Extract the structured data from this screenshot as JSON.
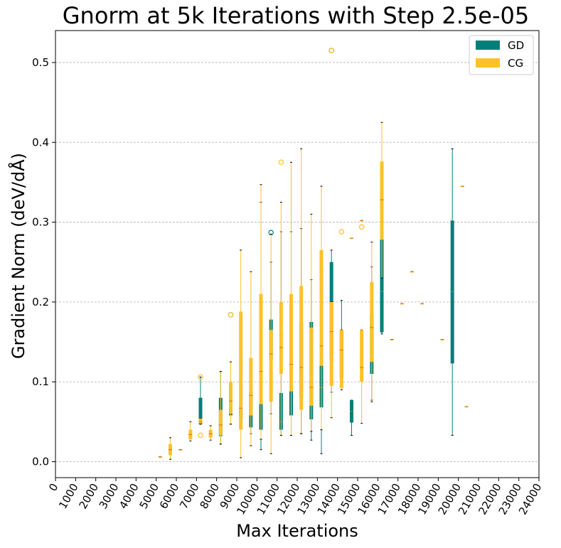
{
  "chart_data": {
    "type": "boxplot",
    "title": "Gnorm at 5k Iterations with Step 2.5e-05",
    "xlabel": "Max Iterations",
    "ylabel": "Gradient Norm (deV/dÅ)",
    "xlim": [
      0,
      24000
    ],
    "ylim": [
      -0.02,
      0.54
    ],
    "grid": "horizontal dashed",
    "legend_position": "top-right",
    "x_ticks": [
      {
        "value": 0,
        "label": "0"
      },
      {
        "value": 1000,
        "label": "1000"
      },
      {
        "value": 2000,
        "label": "2000"
      },
      {
        "value": 3000,
        "label": "3000"
      },
      {
        "value": 4000,
        "label": "4000"
      },
      {
        "value": 5000,
        "label": "5000"
      },
      {
        "value": 6000,
        "label": "6000"
      },
      {
        "value": 7000,
        "label": "7000"
      },
      {
        "value": 8000,
        "label": "8000"
      },
      {
        "value": 9000,
        "label": "9000"
      },
      {
        "value": 10000,
        "label": "10000"
      },
      {
        "value": 11000,
        "label": "11000"
      },
      {
        "value": 12000,
        "label": "12000"
      },
      {
        "value": 13000,
        "label": "13000"
      },
      {
        "value": 14000,
        "label": "14000"
      },
      {
        "value": 15000,
        "label": "15000"
      },
      {
        "value": 16000,
        "label": "16000"
      },
      {
        "value": 17000,
        "label": "17000"
      },
      {
        "value": 18000,
        "label": "18000"
      },
      {
        "value": 19000,
        "label": "19000"
      },
      {
        "value": 20000,
        "label": "20000"
      },
      {
        "value": 21000,
        "label": "21000"
      },
      {
        "value": 22000,
        "label": "22000"
      },
      {
        "value": 23000,
        "label": "23000"
      },
      {
        "value": 24000,
        "label": "24000"
      }
    ],
    "y_ticks": [
      {
        "value": 0.0,
        "label": "0.0"
      },
      {
        "value": 0.1,
        "label": "0.1"
      },
      {
        "value": 0.2,
        "label": "0.2"
      },
      {
        "value": 0.3,
        "label": "0.3"
      },
      {
        "value": 0.4,
        "label": "0.4"
      },
      {
        "value": 0.5,
        "label": "0.5"
      }
    ],
    "series": [
      {
        "name": "GD",
        "color": "#007f7a",
        "boxes": [
          {
            "x": 7200,
            "whislo": 0.047,
            "q1": 0.047,
            "med": 0.052,
            "q3": 0.08,
            "whishi": 0.106
          },
          {
            "x": 8200,
            "whislo": 0.022,
            "q1": 0.032,
            "med": 0.045,
            "q3": 0.08,
            "whishi": 0.113
          },
          {
            "x": 8700,
            "whislo": 0.047,
            "q1": 0.058,
            "med": 0.066,
            "q3": 0.098,
            "whishi": 0.098,
            "fliers": [
              0.184
            ]
          },
          {
            "x": 9200,
            "whislo": 0.055,
            "q1": 0.056,
            "med": 0.06,
            "q3": 0.066,
            "whishi": 0.068
          },
          {
            "x": 9700,
            "whislo": 0.035,
            "q1": 0.043,
            "med": 0.058,
            "q3": 0.087,
            "whishi": 0.127
          },
          {
            "x": 10200,
            "whislo": 0.015,
            "q1": 0.04,
            "med": 0.085,
            "q3": 0.177,
            "whishi": 0.325
          },
          {
            "x": 10700,
            "whislo": 0.06,
            "q1": 0.127,
            "med": 0.142,
            "q3": 0.178,
            "whishi": 0.25,
            "fliers": [
              0.287
            ]
          },
          {
            "x": 11200,
            "whislo": 0.033,
            "q1": 0.04,
            "med": 0.05,
            "q3": 0.086,
            "whishi": 0.288
          },
          {
            "x": 11700,
            "whislo": 0.033,
            "q1": 0.058,
            "med": 0.095,
            "q3": 0.182,
            "whishi": 0.288
          },
          {
            "x": 12200,
            "whislo": 0.035,
            "q1": 0.08,
            "med": 0.12,
            "q3": 0.174,
            "whishi": 0.292
          },
          {
            "x": 12700,
            "whislo": 0.027,
            "q1": 0.053,
            "med": 0.093,
            "q3": 0.175,
            "whishi": 0.228
          },
          {
            "x": 13200,
            "whislo": 0.01,
            "q1": 0.068,
            "med": 0.093,
            "q3": 0.128,
            "whishi": 0.19
          },
          {
            "x": 13700,
            "whislo": 0.087,
            "q1": 0.128,
            "med": 0.163,
            "q3": 0.25,
            "whishi": 0.265,
            "fliers": [
              0.515
            ]
          },
          {
            "x": 14200,
            "whislo": 0.093,
            "q1": 0.105,
            "med": 0.14,
            "q3": 0.165,
            "whishi": 0.202
          },
          {
            "x": 14700,
            "whislo": 0.033,
            "q1": 0.049,
            "med": 0.063,
            "q3": 0.077,
            "whishi": 0.077
          },
          {
            "x": 15700,
            "whislo": 0.077,
            "q1": 0.11,
            "med": 0.143,
            "q3": 0.184,
            "whishi": 0.244
          },
          {
            "x": 16200,
            "whislo": 0.16,
            "q1": 0.162,
            "med": 0.213,
            "q3": 0.29,
            "whishi": 0.375
          },
          {
            "x": 19700,
            "whislo": 0.033,
            "q1": 0.123,
            "med": 0.213,
            "q3": 0.302,
            "whishi": 0.392
          }
        ]
      },
      {
        "name": "CG",
        "color": "#ffc12a",
        "boxes": [
          {
            "x": 5200,
            "whislo": 0.006,
            "q1": 0.006,
            "med": 0.006,
            "q3": 0.006,
            "whishi": 0.006
          },
          {
            "x": 5700,
            "whislo": 0.003,
            "q1": 0.008,
            "med": 0.015,
            "q3": 0.022,
            "whishi": 0.03
          },
          {
            "x": 6200,
            "whislo": 0.015,
            "q1": 0.015,
            "med": 0.015,
            "q3": 0.015,
            "whishi": 0.015
          },
          {
            "x": 6700,
            "whislo": 0.026,
            "q1": 0.028,
            "med": 0.034,
            "q3": 0.04,
            "whishi": 0.05
          },
          {
            "x": 7200,
            "whislo": 0.047,
            "q1": 0.048,
            "med": 0.05,
            "q3": 0.054,
            "whishi": 0.054,
            "fliers": [
              0.033,
              0.106
            ]
          },
          {
            "x": 7700,
            "whislo": 0.027,
            "q1": 0.03,
            "med": 0.035,
            "q3": 0.04,
            "whishi": 0.045
          },
          {
            "x": 8200,
            "whislo": 0.022,
            "q1": 0.033,
            "med": 0.046,
            "q3": 0.065,
            "whishi": 0.113
          },
          {
            "x": 8700,
            "whislo": 0.047,
            "q1": 0.06,
            "med": 0.076,
            "q3": 0.1,
            "whishi": 0.125,
            "fliers": [
              0.184
            ]
          },
          {
            "x": 9200,
            "whislo": 0.005,
            "q1": 0.04,
            "med": 0.067,
            "q3": 0.188,
            "whishi": 0.265
          },
          {
            "x": 9700,
            "whislo": 0.02,
            "q1": 0.058,
            "med": 0.083,
            "q3": 0.13,
            "whishi": 0.238
          },
          {
            "x": 10200,
            "whislo": 0.028,
            "q1": 0.072,
            "med": 0.113,
            "q3": 0.21,
            "whishi": 0.347
          },
          {
            "x": 10700,
            "whislo": 0.01,
            "q1": 0.075,
            "med": 0.135,
            "q3": 0.165,
            "whishi": 0.285
          },
          {
            "x": 11200,
            "whislo": 0.033,
            "q1": 0.11,
            "med": 0.143,
            "q3": 0.2,
            "whishi": 0.325,
            "fliers": [
              0.375
            ]
          },
          {
            "x": 11700,
            "whislo": 0.033,
            "q1": 0.088,
            "med": 0.122,
            "q3": 0.21,
            "whishi": 0.375
          },
          {
            "x": 12200,
            "whislo": 0.035,
            "q1": 0.065,
            "med": 0.118,
            "q3": 0.22,
            "whishi": 0.392
          },
          {
            "x": 12700,
            "whislo": 0.038,
            "q1": 0.07,
            "med": 0.093,
            "q3": 0.168,
            "whishi": 0.31
          },
          {
            "x": 13200,
            "whislo": 0.04,
            "q1": 0.12,
            "med": 0.145,
            "q3": 0.265,
            "whishi": 0.345
          },
          {
            "x": 13700,
            "whislo": 0.055,
            "q1": 0.095,
            "med": 0.163,
            "q3": 0.2,
            "whishi": 0.2,
            "fliers": [
              0.515
            ]
          },
          {
            "x": 14200,
            "whislo": 0.09,
            "q1": 0.092,
            "med": 0.14,
            "q3": 0.165,
            "whishi": 0.165,
            "fliers": [
              0.288
            ]
          },
          {
            "x": 14700,
            "whislo": 0.28,
            "q1": 0.28,
            "med": 0.28,
            "q3": 0.28,
            "whishi": 0.28
          },
          {
            "x": 15200,
            "whislo": 0.302,
            "q1": 0.302,
            "med": 0.302,
            "q3": 0.302,
            "whishi": 0.302
          },
          {
            "x": 15200,
            "whislo": 0.048,
            "q1": 0.1,
            "med": 0.118,
            "q3": 0.165,
            "whishi": 0.165,
            "fliers": [
              0.294
            ]
          },
          {
            "x": 15700,
            "whislo": 0.075,
            "q1": 0.125,
            "med": 0.168,
            "q3": 0.225,
            "whishi": 0.275
          },
          {
            "x": 16200,
            "whislo": 0.23,
            "q1": 0.278,
            "med": 0.328,
            "q3": 0.376,
            "whishi": 0.425
          },
          {
            "x": 16700,
            "whislo": 0.153,
            "q1": 0.153,
            "med": 0.153,
            "q3": 0.153,
            "whishi": 0.153
          },
          {
            "x": 17200,
            "whislo": 0.198,
            "q1": 0.198,
            "med": 0.198,
            "q3": 0.198,
            "whishi": 0.198
          },
          {
            "x": 17700,
            "whislo": 0.238,
            "q1": 0.238,
            "med": 0.238,
            "q3": 0.238,
            "whishi": 0.238
          },
          {
            "x": 18200,
            "whislo": 0.198,
            "q1": 0.198,
            "med": 0.198,
            "q3": 0.198,
            "whishi": 0.198
          },
          {
            "x": 19200,
            "whislo": 0.153,
            "q1": 0.153,
            "med": 0.153,
            "q3": 0.153,
            "whishi": 0.153
          },
          {
            "x": 20200,
            "whislo": 0.345,
            "q1": 0.345,
            "med": 0.345,
            "q3": 0.345,
            "whishi": 0.345
          },
          {
            "x": 20400,
            "whislo": 0.069,
            "q1": 0.069,
            "med": 0.069,
            "q3": 0.069,
            "whishi": 0.069
          }
        ]
      }
    ]
  }
}
